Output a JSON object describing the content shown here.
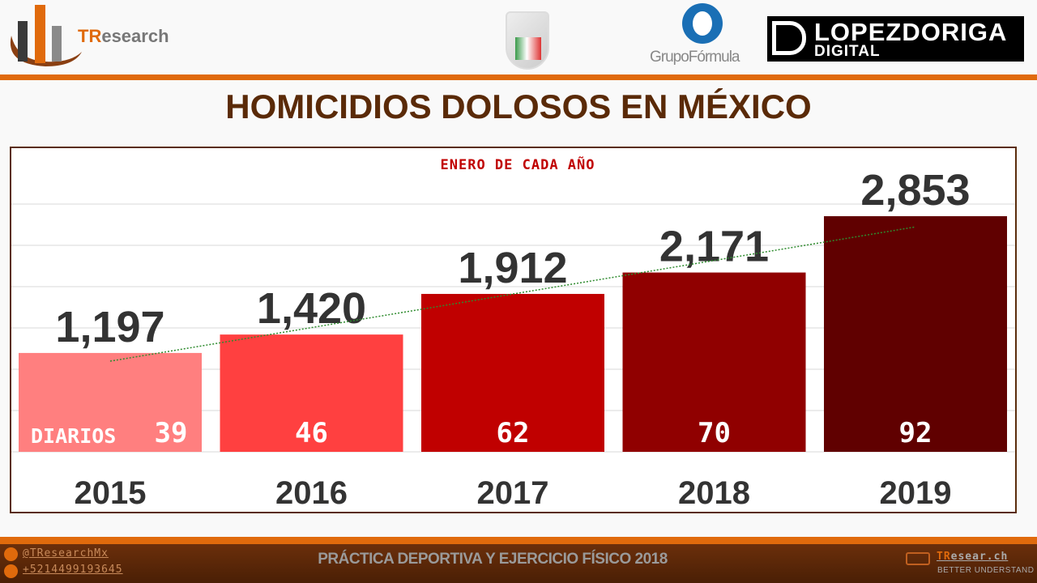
{
  "header": {
    "brand": {
      "prefix": "TR",
      "rest": "esearch"
    },
    "logos": [
      "sistema-nacional-seguridad-publica-logo",
      "GrupoFórmula",
      "LOPEZDORIGA",
      "DIGITAL"
    ]
  },
  "title": "HOMICIDIOS DOLOSOS EN MÉXICO",
  "chart_data": {
    "type": "bar",
    "subtitle": "ENERO DE CADA AÑO",
    "categories": [
      "2015",
      "2016",
      "2017",
      "2018",
      "2019"
    ],
    "values": [
      1197,
      1420,
      1912,
      2171,
      2853
    ],
    "value_labels": [
      "1,197",
      "1,420",
      "1,912",
      "2,171",
      "2,853"
    ],
    "daily_label": "DIARIOS",
    "daily_values": [
      "39",
      "46",
      "62",
      "70",
      "92"
    ],
    "colors": [
      "#ff7f7f",
      "#ff4040",
      "#c00000",
      "#900000",
      "#600000"
    ],
    "ylim": [
      0,
      3500
    ],
    "grid": true,
    "trendline": {
      "type": "linear",
      "color": "#2e8b2e",
      "style": "dotted"
    }
  },
  "footer": {
    "twitter": "@TResearchMx",
    "phone": "+5214499193645",
    "caption": "PRÁCTICA DEPORTIVA Y EJERCICIO FÍSICO 2018",
    "site_prefix": "TR",
    "site_rest": "esear.ch",
    "tagline": "BETTER UNDERSTAND"
  }
}
